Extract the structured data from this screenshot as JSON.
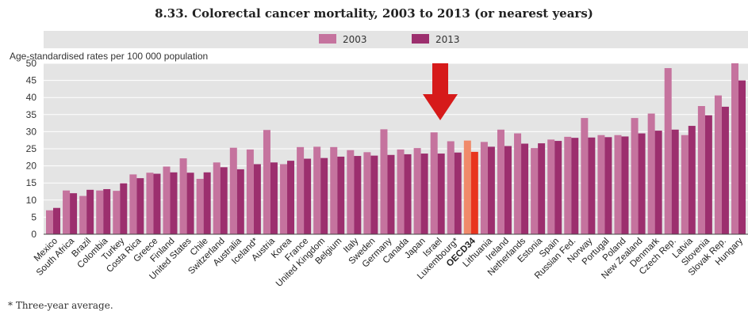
{
  "title": "8.33. Colorectal cancer mortality, 2003 to 2013 (or nearest years)",
  "ylabel": "Age-standardised rates per 100 000 population",
  "footnote": "* Three-year average.",
  "legend": [
    {
      "label": "2003",
      "color": "#c5739e"
    },
    {
      "label": "2013",
      "color": "#9c2f6e"
    }
  ],
  "chart_data": {
    "type": "bar",
    "ylim": [
      0,
      50
    ],
    "yticks": [
      0,
      5,
      10,
      15,
      20,
      25,
      30,
      35,
      40,
      45,
      50
    ],
    "grid": true,
    "legend_position": "top-center",
    "highlight_category": "OECD34",
    "highlight_colors": {
      "2003": "#f08a6a",
      "2013": "#e8351e"
    },
    "annotation": "red down arrow pointing at Luxembourg*",
    "categories": [
      "Mexico",
      "South Africa",
      "Brazil",
      "Colombia",
      "Turkey",
      "Costa Rica",
      "Greece",
      "Finland",
      "United States",
      "Chile",
      "Switzerland",
      "Australia",
      "Iceland*",
      "Austria",
      "Korea",
      "France",
      "United Kingdom",
      "Belgium",
      "Italy",
      "Sweden",
      "Germany",
      "Canada",
      "Japan",
      "Israel",
      "Luxembourg*",
      "OECD34",
      "Lithuania",
      "Ireland",
      "Netherlands",
      "Estonia",
      "Spain",
      "Russian Fed.",
      "Norway",
      "Portugal",
      "Poland",
      "New Zealand",
      "Denmark",
      "Czech Rep.",
      "Latvia",
      "Slovenia",
      "Slovak Rep.",
      "Hungary"
    ],
    "series": [
      {
        "name": "2003",
        "values": [
          7.0,
          12.8,
          11.2,
          12.8,
          12.7,
          17.5,
          18.0,
          19.8,
          22.2,
          16.2,
          21.0,
          25.3,
          24.8,
          30.5,
          20.5,
          25.5,
          25.6,
          25.5,
          24.6,
          24.0,
          30.7,
          24.8,
          25.2,
          29.8,
          27.2,
          27.4,
          27.0,
          30.6,
          29.5,
          25.2,
          27.7,
          28.5,
          34.0,
          29.0,
          29.0,
          34.0,
          35.3,
          48.6,
          29.0,
          37.5,
          40.6,
          50.0
        ]
      },
      {
        "name": "2013",
        "values": [
          7.7,
          12.0,
          13.0,
          13.2,
          14.9,
          16.4,
          17.7,
          18.1,
          18.0,
          18.1,
          19.6,
          19.0,
          20.5,
          21.0,
          21.5,
          22.1,
          22.3,
          22.7,
          22.9,
          23.0,
          23.2,
          23.4,
          23.6,
          23.6,
          23.9,
          24.1,
          25.6,
          25.8,
          26.5,
          26.6,
          27.3,
          28.2,
          28.3,
          28.4,
          28.6,
          29.5,
          30.3,
          30.6,
          31.7,
          34.8,
          37.3,
          45.0
        ]
      }
    ]
  }
}
